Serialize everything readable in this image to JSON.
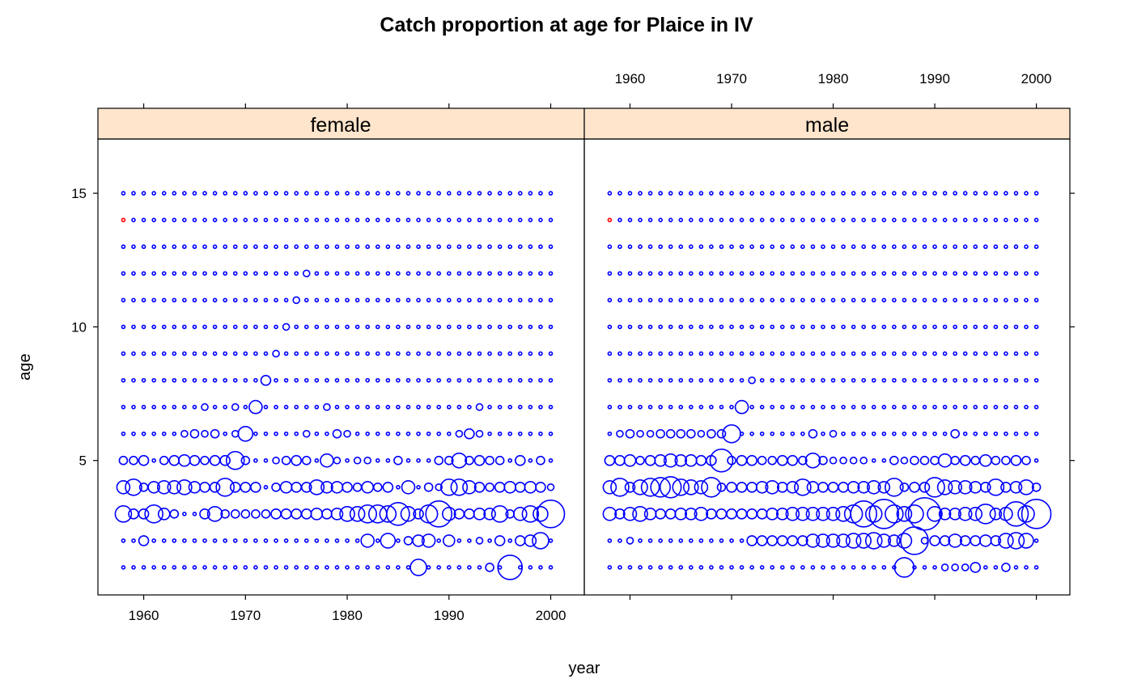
{
  "chart_data": {
    "type": "scatter",
    "title": "Catch proportion at age for Plaice in IV",
    "xlabel": "year",
    "ylabel": "age",
    "xlim": [
      1955.5,
      2003.3
    ],
    "ylim": [
      -0.03,
      17.03
    ],
    "x_ticks": [
      1960,
      1970,
      1980,
      1990,
      2000
    ],
    "y_ticks": [
      5,
      10,
      15
    ],
    "years": [
      1958,
      2000
    ],
    "ages": [
      1,
      15
    ],
    "colors": {
      "default": "#0000ff",
      "highlight": "#ff0000",
      "strip": "#ffe5cc"
    },
    "panels": [
      {
        "name": "female",
        "highlight": [
          {
            "year": 1958,
            "age": 14
          }
        ],
        "overrides": {
          "1": {
            "1987": 10,
            "1994": 5,
            "1996": 15
          },
          "2": {
            "1960": 6,
            "1982": 8,
            "1984": 9,
            "1986": 5,
            "1987": 7,
            "1988": 8,
            "1990": 7,
            "1993": 4,
            "1995": 6,
            "1997": 6,
            "1998": 7,
            "1999": 10
          },
          "3": {
            "1958": 10,
            "1959": 6,
            "1960": 6,
            "1961": 11,
            "1962": 7,
            "1963": 5,
            "1966": 6,
            "1967": 9,
            "1968": 5,
            "1969": 5,
            "1970": 5,
            "1971": 5,
            "1972": 5,
            "1973": 6,
            "1974": 6,
            "1975": 6,
            "1976": 6,
            "1977": 7,
            "1978": 6,
            "1979": 7,
            "1980": 9,
            "1981": 9,
            "1982": 11,
            "1983": 11,
            "1984": 10,
            "1985": 14,
            "1986": 9,
            "1987": 6,
            "1988": 11,
            "1989": 16,
            "1990": 8,
            "1991": 6,
            "1992": 6,
            "1993": 7,
            "1994": 7,
            "1995": 10,
            "1996": 5,
            "1997": 8,
            "1998": 10,
            "1999": 9,
            "2000": 17
          },
          "4": {
            "1958": 8,
            "1959": 10,
            "1960": 5,
            "1961": 7,
            "1962": 8,
            "1963": 8,
            "1964": 9,
            "1965": 7,
            "1966": 6,
            "1967": 6,
            "1968": 11,
            "1969": 6,
            "1970": 6,
            "1971": 6,
            "1973": 5,
            "1974": 7,
            "1975": 6,
            "1976": 6,
            "1977": 9,
            "1978": 7,
            "1979": 7,
            "1980": 6,
            "1981": 5,
            "1982": 7,
            "1983": 5,
            "1984": 6,
            "1986": 8,
            "1988": 5,
            "1989": 4,
            "1990": 10,
            "1991": 10,
            "1992": 8,
            "1993": 6,
            "1994": 5,
            "1995": 6,
            "1996": 7,
            "1997": 6,
            "1998": 7,
            "1999": 6,
            "2000": 4
          },
          "5": {
            "1958": 5,
            "1959": 5,
            "1960": 6,
            "1962": 5,
            "1963": 6,
            "1964": 7,
            "1965": 6,
            "1966": 5,
            "1967": 6,
            "1968": 6,
            "1969": 11,
            "1970": 5,
            "1973": 4,
            "1974": 5,
            "1975": 6,
            "1976": 5,
            "1978": 8,
            "1979": 4,
            "1981": 4,
            "1982": 4,
            "1985": 5,
            "1989": 5,
            "1990": 5,
            "1991": 9,
            "1992": 5,
            "1993": 6,
            "1994": 5,
            "1995": 5,
            "1997": 6,
            "1999": 5
          },
          "6": {
            "1964": 4,
            "1965": 5,
            "1966": 4,
            "1967": 5,
            "1969": 4,
            "1970": 9,
            "1976": 4,
            "1979": 5,
            "1980": 4,
            "1991": 4,
            "1992": 6,
            "1993": 4
          },
          "7": {
            "1966": 4,
            "1969": 4,
            "1971": 8,
            "1978": 4,
            "1993": 4
          },
          "8": {
            "1972": 6
          },
          "9": {
            "1973": 4
          },
          "10": {
            "1974": 4
          },
          "11": {
            "1975": 4
          },
          "12": {
            "1976": 4
          }
        }
      },
      {
        "name": "male",
        "highlight": [
          {
            "year": 1958,
            "age": 14
          }
        ],
        "overrides": {
          "1": {
            "1987": 12,
            "1991": 4,
            "1992": 4,
            "1993": 4,
            "1994": 6,
            "1997": 5
          },
          "2": {
            "1960": 4,
            "1972": 6,
            "1973": 6,
            "1974": 6,
            "1975": 6,
            "1976": 6,
            "1977": 6,
            "1978": 8,
            "1979": 8,
            "1980": 8,
            "1981": 8,
            "1982": 9,
            "1983": 9,
            "1984": 10,
            "1985": 8,
            "1986": 7,
            "1987": 9,
            "1988": 17,
            "1989": 4,
            "1990": 6,
            "1991": 6,
            "1992": 8,
            "1993": 6,
            "1994": 6,
            "1995": 7,
            "1996": 6,
            "1997": 9,
            "1998": 10,
            "1999": 9
          },
          "3": {
            "1958": 8,
            "1959": 6,
            "1960": 8,
            "1961": 9,
            "1962": 7,
            "1963": 6,
            "1964": 6,
            "1965": 7,
            "1966": 7,
            "1967": 8,
            "1968": 6,
            "1969": 6,
            "1970": 6,
            "1971": 6,
            "1972": 6,
            "1973": 6,
            "1974": 7,
            "1975": 7,
            "1976": 8,
            "1977": 8,
            "1978": 8,
            "1979": 8,
            "1980": 8,
            "1981": 9,
            "1982": 11,
            "1983": 16,
            "1984": 10,
            "1985": 18,
            "1986": 11,
            "1987": 9,
            "1988": 11,
            "1989": 20,
            "1990": 9,
            "1991": 7,
            "1992": 7,
            "1993": 8,
            "1994": 8,
            "1995": 12,
            "1996": 7,
            "1997": 8,
            "1998": 15,
            "1999": 10,
            "2000": 18
          },
          "4": {
            "1958": 8,
            "1959": 11,
            "1960": 6,
            "1961": 9,
            "1962": 11,
            "1963": 12,
            "1964": 13,
            "1965": 10,
            "1966": 9,
            "1967": 8,
            "1968": 12,
            "1969": 5,
            "1970": 6,
            "1971": 6,
            "1972": 6,
            "1973": 7,
            "1974": 8,
            "1975": 6,
            "1976": 7,
            "1977": 10,
            "1978": 7,
            "1979": 6,
            "1980": 6,
            "1981": 6,
            "1982": 7,
            "1983": 7,
            "1984": 8,
            "1985": 7,
            "1986": 11,
            "1987": 5,
            "1988": 6,
            "1989": 6,
            "1990": 12,
            "1991": 9,
            "1992": 8,
            "1993": 8,
            "1994": 7,
            "1995": 6,
            "1996": 10,
            "1997": 6,
            "1998": 7,
            "1999": 9,
            "2000": 5
          },
          "5": {
            "1958": 6,
            "1959": 6,
            "1960": 7,
            "1961": 5,
            "1962": 6,
            "1963": 7,
            "1964": 8,
            "1965": 7,
            "1966": 7,
            "1967": 6,
            "1968": 6,
            "1969": 14,
            "1970": 5,
            "1971": 6,
            "1972": 6,
            "1973": 5,
            "1974": 5,
            "1975": 6,
            "1976": 6,
            "1977": 5,
            "1978": 9,
            "1979": 5,
            "1980": 4,
            "1981": 4,
            "1982": 4,
            "1983": 4,
            "1986": 5,
            "1987": 4,
            "1988": 5,
            "1989": 5,
            "1990": 5,
            "1991": 8,
            "1992": 5,
            "1993": 6,
            "1994": 5,
            "1995": 7,
            "1996": 5,
            "1997": 5,
            "1998": 6,
            "1999": 5
          },
          "6": {
            "1959": 4,
            "1960": 5,
            "1961": 4,
            "1962": 4,
            "1963": 5,
            "1964": 5,
            "1965": 5,
            "1966": 5,
            "1967": 4,
            "1968": 5,
            "1969": 5,
            "1970": 11,
            "1978": 5,
            "1980": 4,
            "1992": 5
          },
          "7": {
            "1971": 8
          },
          "8": {
            "1972": 4
          }
        }
      }
    ]
  }
}
